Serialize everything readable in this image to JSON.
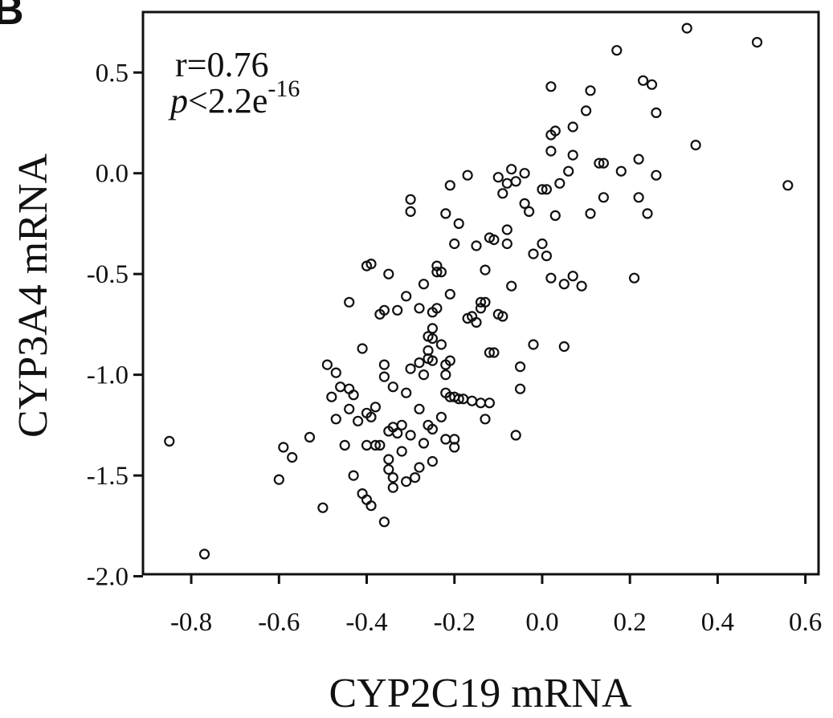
{
  "panel_label": "B",
  "annotation": {
    "r_text": "r=0.76",
    "p_symbol": "p",
    "p_rest": "<2.2e",
    "p_exponent": "-16"
  },
  "chart_data": {
    "type": "scatter",
    "xlabel": "CYP2C19 mRNA",
    "ylabel": "CYP3A4 mRNA",
    "xlim": [
      -0.91,
      0.63
    ],
    "ylim": [
      -1.99,
      0.8
    ],
    "xticks": [
      -0.8,
      -0.6,
      -0.4,
      -0.2,
      0.0,
      0.2,
      0.4,
      0.6
    ],
    "xtick_labels": [
      "-0.8",
      "-0.6",
      "-0.4",
      "-0.2",
      "0.0",
      "0.2",
      "0.4",
      "0.6"
    ],
    "yticks": [
      -2.0,
      -1.5,
      -1.0,
      -0.5,
      0.0,
      0.5
    ],
    "ytick_labels": [
      "-2.0",
      "-1.5",
      "-1.0",
      "-0.5",
      "0.0",
      "0.5"
    ],
    "grid": false,
    "marker": "open-circle",
    "points": [
      [
        -0.85,
        -1.33
      ],
      [
        -0.77,
        -1.89
      ],
      [
        -0.6,
        -1.52
      ],
      [
        -0.59,
        -1.36
      ],
      [
        -0.57,
        -1.41
      ],
      [
        -0.53,
        -1.31
      ],
      [
        -0.5,
        -1.66
      ],
      [
        -0.49,
        -0.95
      ],
      [
        -0.48,
        -1.11
      ],
      [
        -0.47,
        -0.99
      ],
      [
        -0.47,
        -1.22
      ],
      [
        -0.46,
        -1.06
      ],
      [
        -0.45,
        -1.35
      ],
      [
        -0.44,
        -0.64
      ],
      [
        -0.44,
        -1.07
      ],
      [
        -0.44,
        -1.17
      ],
      [
        -0.43,
        -1.1
      ],
      [
        -0.43,
        -1.5
      ],
      [
        -0.42,
        -1.23
      ],
      [
        -0.41,
        -1.59
      ],
      [
        -0.41,
        -0.87
      ],
      [
        -0.4,
        -1.62
      ],
      [
        -0.4,
        -0.46
      ],
      [
        -0.4,
        -1.19
      ],
      [
        -0.4,
        -1.35
      ],
      [
        -0.39,
        -0.45
      ],
      [
        -0.39,
        -1.21
      ],
      [
        -0.39,
        -1.65
      ],
      [
        -0.38,
        -1.16
      ],
      [
        -0.38,
        -1.35
      ],
      [
        -0.37,
        -0.7
      ],
      [
        -0.37,
        -1.35
      ],
      [
        -0.36,
        -0.68
      ],
      [
        -0.36,
        -1.73
      ],
      [
        -0.36,
        -0.95
      ],
      [
        -0.36,
        -1.01
      ],
      [
        -0.35,
        -1.28
      ],
      [
        -0.35,
        -1.42
      ],
      [
        -0.35,
        -1.47
      ],
      [
        -0.35,
        -0.5
      ],
      [
        -0.34,
        -1.56
      ],
      [
        -0.34,
        -1.26
      ],
      [
        -0.34,
        -1.06
      ],
      [
        -0.34,
        -1.51
      ],
      [
        -0.33,
        -1.29
      ],
      [
        -0.33,
        -0.68
      ],
      [
        -0.32,
        -1.38
      ],
      [
        -0.32,
        -1.25
      ],
      [
        -0.31,
        -1.09
      ],
      [
        -0.31,
        -1.53
      ],
      [
        -0.31,
        -0.61
      ],
      [
        -0.3,
        -0.97
      ],
      [
        -0.3,
        -0.13
      ],
      [
        -0.3,
        -0.19
      ],
      [
        -0.3,
        -1.3
      ],
      [
        -0.29,
        -1.51
      ],
      [
        -0.28,
        -0.94
      ],
      [
        -0.28,
        -1.17
      ],
      [
        -0.28,
        -0.67
      ],
      [
        -0.28,
        -1.46
      ],
      [
        -0.27,
        -0.55
      ],
      [
        -0.27,
        -1.0
      ],
      [
        -0.27,
        -1.34
      ],
      [
        -0.26,
        -0.92
      ],
      [
        -0.26,
        -0.81
      ],
      [
        -0.26,
        -1.25
      ],
      [
        -0.26,
        -0.88
      ],
      [
        -0.25,
        -0.77
      ],
      [
        -0.25,
        -0.82
      ],
      [
        -0.25,
        -1.43
      ],
      [
        -0.25,
        -0.93
      ],
      [
        -0.25,
        -1.27
      ],
      [
        -0.25,
        -0.69
      ],
      [
        -0.24,
        -0.49
      ],
      [
        -0.24,
        -0.67
      ],
      [
        -0.24,
        -0.46
      ],
      [
        -0.23,
        -0.49
      ],
      [
        -0.23,
        -1.21
      ],
      [
        -0.23,
        -0.85
      ],
      [
        -0.22,
        -0.95
      ],
      [
        -0.22,
        -1.09
      ],
      [
        -0.22,
        -1.32
      ],
      [
        -0.22,
        -1.0
      ],
      [
        -0.22,
        -0.2
      ],
      [
        -0.21,
        -0.06
      ],
      [
        -0.21,
        -1.11
      ],
      [
        -0.21,
        -0.6
      ],
      [
        -0.21,
        -0.93
      ],
      [
        -0.2,
        -1.36
      ],
      [
        -0.2,
        -1.11
      ],
      [
        -0.2,
        -0.35
      ],
      [
        -0.2,
        -1.32
      ],
      [
        -0.19,
        -1.12
      ],
      [
        -0.19,
        -0.25
      ],
      [
        -0.18,
        -1.12
      ],
      [
        -0.17,
        -0.72
      ],
      [
        -0.17,
        -0.01
      ],
      [
        -0.16,
        -1.13
      ],
      [
        -0.16,
        -0.71
      ],
      [
        -0.15,
        -0.74
      ],
      [
        -0.15,
        -0.36
      ],
      [
        -0.14,
        -0.67
      ],
      [
        -0.14,
        -0.64
      ],
      [
        -0.14,
        -1.14
      ],
      [
        -0.13,
        -1.22
      ],
      [
        -0.13,
        -0.64
      ],
      [
        -0.13,
        -0.48
      ],
      [
        -0.12,
        -1.14
      ],
      [
        -0.12,
        -0.32
      ],
      [
        -0.12,
        -0.89
      ],
      [
        -0.11,
        -0.33
      ],
      [
        -0.11,
        -0.89
      ],
      [
        -0.1,
        -0.02
      ],
      [
        -0.1,
        -0.7
      ],
      [
        -0.09,
        -0.71
      ],
      [
        -0.09,
        -0.1
      ],
      [
        -0.08,
        -0.35
      ],
      [
        -0.08,
        -0.05
      ],
      [
        -0.08,
        -0.28
      ],
      [
        -0.07,
        0.02
      ],
      [
        -0.07,
        -0.56
      ],
      [
        -0.06,
        -0.04
      ],
      [
        -0.06,
        -1.3
      ],
      [
        -0.05,
        -1.07
      ],
      [
        -0.05,
        -0.96
      ],
      [
        -0.04,
        0.0
      ],
      [
        -0.04,
        -0.15
      ],
      [
        -0.03,
        -0.19
      ],
      [
        -0.02,
        -0.4
      ],
      [
        -0.02,
        -0.85
      ],
      [
        0.0,
        -0.08
      ],
      [
        0.0,
        -0.35
      ],
      [
        0.01,
        -0.08
      ],
      [
        0.01,
        -0.41
      ],
      [
        0.02,
        0.43
      ],
      [
        0.02,
        0.11
      ],
      [
        0.02,
        0.19
      ],
      [
        0.02,
        -0.52
      ],
      [
        0.03,
        0.21
      ],
      [
        0.03,
        -0.21
      ],
      [
        0.04,
        -0.05
      ],
      [
        0.05,
        -0.55
      ],
      [
        0.05,
        -0.86
      ],
      [
        0.06,
        0.01
      ],
      [
        0.07,
        0.09
      ],
      [
        0.07,
        0.23
      ],
      [
        0.07,
        -0.51
      ],
      [
        0.09,
        -0.56
      ],
      [
        0.1,
        0.31
      ],
      [
        0.11,
        -0.2
      ],
      [
        0.11,
        0.41
      ],
      [
        0.13,
        0.05
      ],
      [
        0.14,
        0.05
      ],
      [
        0.14,
        -0.12
      ],
      [
        0.17,
        0.61
      ],
      [
        0.18,
        0.01
      ],
      [
        0.21,
        -0.52
      ],
      [
        0.22,
        -0.12
      ],
      [
        0.22,
        0.07
      ],
      [
        0.23,
        0.46
      ],
      [
        0.24,
        -0.2
      ],
      [
        0.25,
        0.44
      ],
      [
        0.26,
        -0.01
      ],
      [
        0.26,
        0.3
      ],
      [
        0.33,
        0.72
      ],
      [
        0.35,
        0.14
      ],
      [
        0.49,
        0.65
      ],
      [
        0.56,
        -0.06
      ]
    ]
  }
}
